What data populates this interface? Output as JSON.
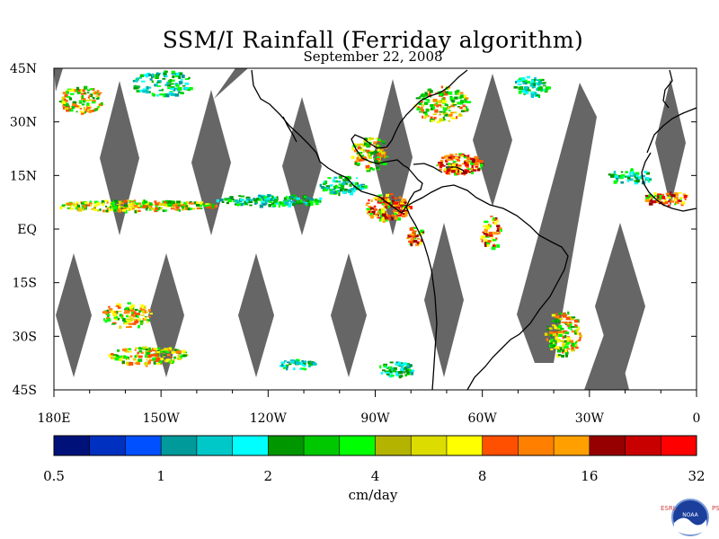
{
  "header": {
    "title": "SSM/I Rainfall (Ferriday algorithm)",
    "date": "September 22, 2008"
  },
  "map": {
    "projection": "cylindrical-equidistant",
    "lon_range": [
      -180,
      0
    ],
    "lat_range": [
      -45,
      45
    ],
    "no_data_color": "#666666",
    "coast_color": "#000000",
    "lat_labels": [
      "45N",
      "30N",
      "15N",
      "EQ",
      "15S",
      "30S",
      "45S"
    ],
    "lat_values": [
      45,
      30,
      15,
      0,
      -15,
      -30,
      -45
    ],
    "lon_labels": [
      "180E",
      "150W",
      "120W",
      "90W",
      "60W",
      "30W",
      "0"
    ],
    "lon_values": [
      -180,
      -150,
      -120,
      -90,
      -60,
      -30,
      0
    ]
  },
  "colorbar": {
    "colors": [
      "#00127a",
      "#0030c0",
      "#0050ff",
      "#009a9a",
      "#00c8c8",
      "#00ffff",
      "#009600",
      "#00c800",
      "#00ff00",
      "#b4b400",
      "#dcdc00",
      "#ffff00",
      "#ff5000",
      "#ff8000",
      "#ffa000",
      "#960000",
      "#c80000",
      "#ff0000"
    ],
    "tick_labels": [
      "0.5",
      "1",
      "2",
      "4",
      "8",
      "16",
      "32"
    ],
    "units": "cm/day"
  },
  "logo": {
    "left_text": "ESRL",
    "center_text": "NOAA",
    "right_text": "PSD"
  }
}
